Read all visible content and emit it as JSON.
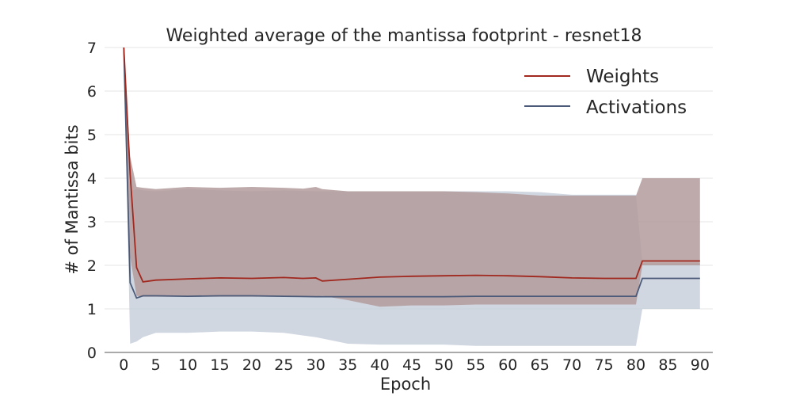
{
  "chart_data": {
    "type": "line",
    "title": "Weighted average of the mantissa footprint - resnet18",
    "xlabel": "Epoch",
    "ylabel": "# of Mantissa bits",
    "xlim": [
      -3,
      92
    ],
    "ylim": [
      0,
      7
    ],
    "xticks": [
      0,
      5,
      10,
      15,
      20,
      25,
      30,
      35,
      40,
      45,
      50,
      55,
      60,
      65,
      70,
      75,
      80,
      85,
      90
    ],
    "yticks": [
      0,
      1,
      2,
      3,
      4,
      5,
      6,
      7
    ],
    "grid": true,
    "legend_position": "top-right",
    "colors": {
      "weights": "#a0281e",
      "activations": "#4a5a78",
      "weights_band": "#b39b9b",
      "activations_band": "#bcc6d4"
    },
    "series": [
      {
        "name": "Weights",
        "x": [
          0,
          1,
          2,
          3,
          5,
          10,
          15,
          20,
          25,
          28,
          30,
          31,
          35,
          40,
          45,
          50,
          55,
          60,
          65,
          70,
          75,
          80,
          81,
          85,
          90
        ],
        "y": [
          7.0,
          4.1,
          1.95,
          1.62,
          1.66,
          1.69,
          1.71,
          1.7,
          1.72,
          1.7,
          1.71,
          1.64,
          1.68,
          1.73,
          1.75,
          1.76,
          1.77,
          1.76,
          1.74,
          1.71,
          1.7,
          1.7,
          2.1,
          2.1,
          2.1
        ],
        "band_low": [
          7.0,
          2.2,
          1.3,
          1.28,
          1.28,
          1.28,
          1.28,
          1.28,
          1.28,
          1.28,
          1.28,
          1.3,
          1.2,
          1.05,
          1.08,
          1.08,
          1.1,
          1.1,
          1.1,
          1.1,
          1.1,
          1.1,
          2.0,
          2.0,
          2.0
        ],
        "band_high": [
          7.0,
          4.5,
          3.8,
          3.78,
          3.75,
          3.8,
          3.78,
          3.8,
          3.78,
          3.76,
          3.8,
          3.75,
          3.7,
          3.7,
          3.7,
          3.7,
          3.68,
          3.65,
          3.6,
          3.6,
          3.6,
          3.6,
          4.0,
          4.0,
          4.0
        ]
      },
      {
        "name": "Activations",
        "x": [
          0,
          1,
          2,
          3,
          5,
          10,
          15,
          20,
          25,
          30,
          35,
          40,
          45,
          50,
          55,
          60,
          65,
          70,
          75,
          80,
          81,
          85,
          90
        ],
        "y": [
          7.0,
          1.6,
          1.25,
          1.3,
          1.3,
          1.29,
          1.3,
          1.3,
          1.29,
          1.28,
          1.28,
          1.28,
          1.28,
          1.28,
          1.29,
          1.29,
          1.29,
          1.29,
          1.29,
          1.29,
          1.7,
          1.7,
          1.7
        ],
        "band_low": [
          7.0,
          0.2,
          0.25,
          0.35,
          0.45,
          0.45,
          0.48,
          0.48,
          0.45,
          0.35,
          0.2,
          0.18,
          0.18,
          0.18,
          0.15,
          0.15,
          0.15,
          0.15,
          0.15,
          0.15,
          1.0,
          1.0,
          1.0
        ],
        "band_high": [
          7.0,
          3.7,
          3.75,
          3.72,
          3.7,
          3.75,
          3.72,
          3.7,
          3.72,
          3.7,
          3.7,
          3.7,
          3.7,
          3.7,
          3.7,
          3.7,
          3.68,
          3.62,
          3.62,
          3.62,
          2.05,
          2.05,
          2.05
        ]
      }
    ]
  }
}
